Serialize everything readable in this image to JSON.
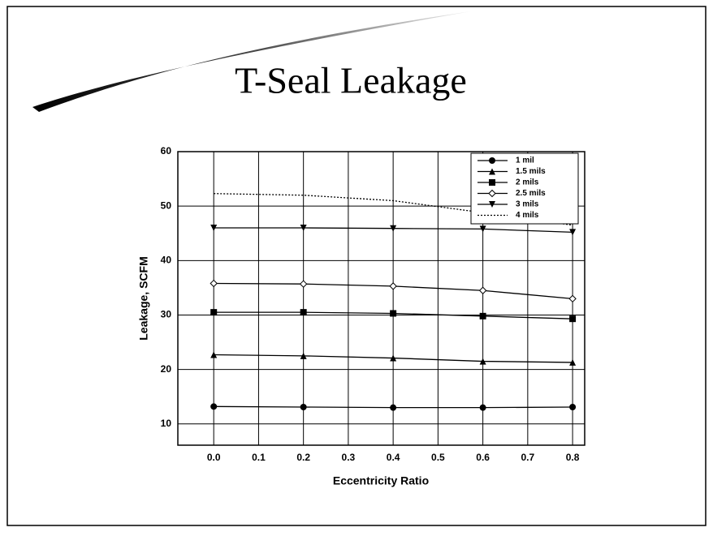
{
  "chart_data": {
    "type": "line",
    "title": "T-Seal Leakage",
    "x_label": "Eccentricity Ratio",
    "y_label": "Leakage, SCFM",
    "x": [
      0,
      0.2,
      0.4,
      0.6,
      0.8
    ],
    "series": [
      {
        "name": "1 mil",
        "color": "#000000",
        "marker": "circle",
        "values": [
          13.2,
          13.1,
          13.0,
          13.0,
          13.1
        ]
      },
      {
        "name": "1.5 mils",
        "color": "#000000",
        "marker": "triangle-up",
        "values": [
          22.7,
          22.5,
          22.1,
          21.5,
          21.3
        ]
      },
      {
        "name": "2 mils",
        "color": "#000000",
        "marker": "square",
        "values": [
          30.5,
          30.5,
          30.3,
          29.8,
          29.3
        ]
      },
      {
        "name": "2.5 mils",
        "color": "#000000",
        "marker": "diamond",
        "values": [
          35.8,
          35.7,
          35.3,
          34.5,
          33.0
        ]
      },
      {
        "name": "3 mils",
        "color": "#000000",
        "marker": "triangle-down",
        "values": [
          46.0,
          46.0,
          45.9,
          45.8,
          45.2
        ]
      },
      {
        "name": "4 mils",
        "color": "#000000",
        "marker": "none",
        "linestyle": "dotted",
        "values": [
          52.3,
          52.0,
          51.0,
          48.8,
          46.5
        ]
      }
    ],
    "xlim": [
      -0.08,
      0.827
    ],
    "xticks": [
      {
        "value": 0,
        "label": "0.0"
      },
      0.1,
      0.2,
      0.3,
      0.4,
      0.5,
      0.6,
      0.7,
      0.8
    ],
    "ylim": [
      6.1,
      60
    ],
    "yticks": [
      10,
      20,
      30,
      40,
      50,
      60
    ],
    "grid": true,
    "legend": "upper right"
  }
}
